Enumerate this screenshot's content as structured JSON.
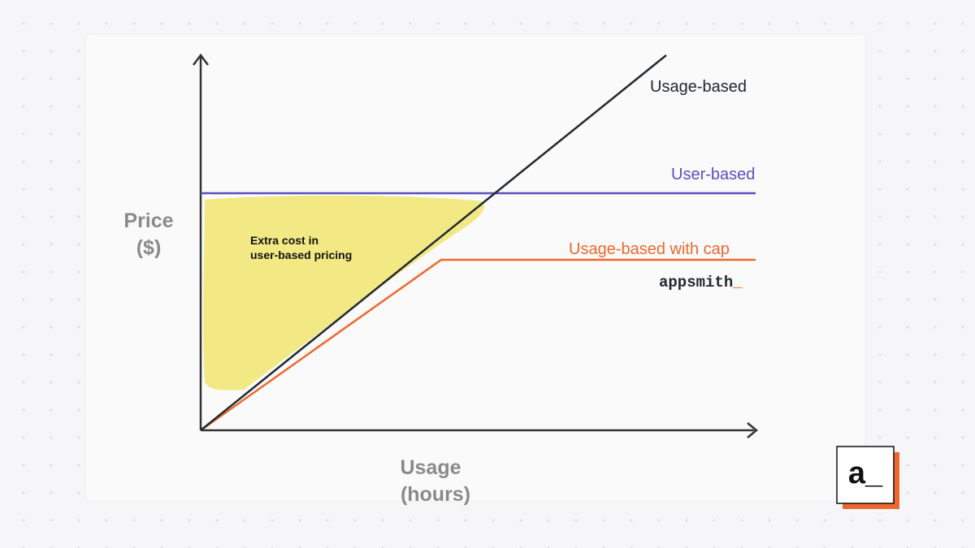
{
  "y_axis": {
    "label": [
      "Price",
      "($)"
    ]
  },
  "x_axis": {
    "label": [
      "Usage",
      "(hours)"
    ]
  },
  "lines": [
    {
      "label": "Usage-based"
    },
    {
      "label": "User-based"
    },
    {
      "label": "Usage-based with cap"
    }
  ],
  "annotation": [
    "Extra cost in",
    "user-based pricing"
  ],
  "brand": {
    "name": "appsmith",
    "cursor": "_"
  },
  "logo": "a_"
}
